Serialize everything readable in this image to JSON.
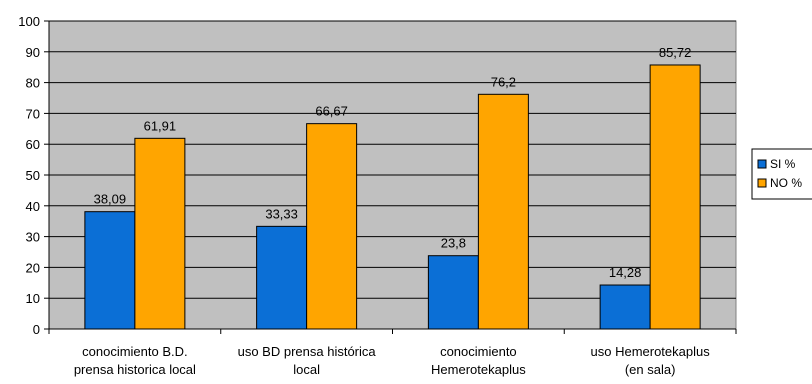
{
  "chart_data": {
    "type": "bar",
    "title": "",
    "xlabel": "",
    "ylabel": "",
    "ylim": [
      0,
      100
    ],
    "yticks": [
      0,
      10,
      20,
      30,
      40,
      50,
      60,
      70,
      80,
      90,
      100
    ],
    "grid": true,
    "legend_position": "right",
    "plot_background": "#c0c0c0",
    "categories": [
      [
        "conocimiento  B.D.",
        "prensa historica local"
      ],
      [
        "uso BD prensa histórica",
        "local"
      ],
      [
        "conocimiento",
        "Hemerotekaplus"
      ],
      [
        "uso Hemerotekaplus",
        "(en sala)"
      ]
    ],
    "series": [
      {
        "name": "SI %",
        "color": "#0b6fd6",
        "values": [
          38.09,
          33.33,
          23.8,
          14.28
        ],
        "labels": [
          "38,09",
          "33,33",
          "23,8",
          "14,28"
        ]
      },
      {
        "name": "NO %",
        "color": "#ffa500",
        "values": [
          61.91,
          66.67,
          76.2,
          85.72
        ],
        "labels": [
          "61,91",
          "66,67",
          "76,2",
          "85,72"
        ]
      }
    ]
  }
}
